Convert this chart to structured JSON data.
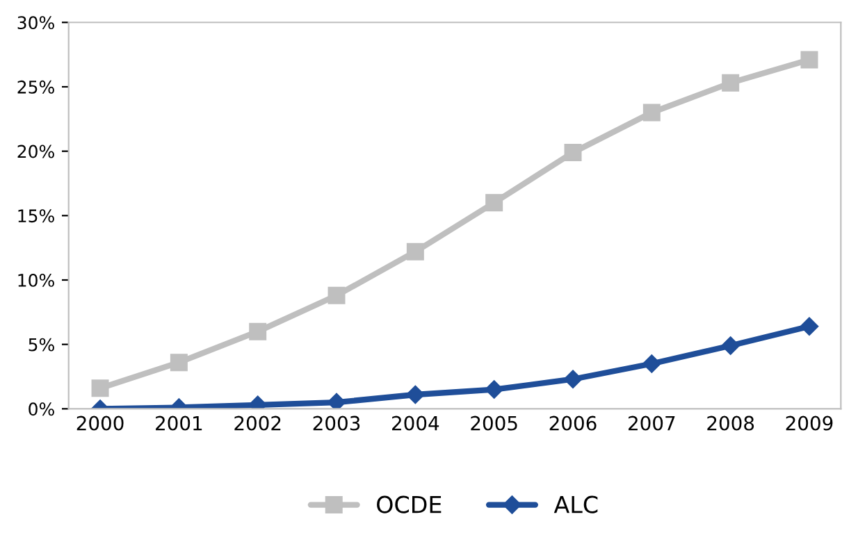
{
  "chart_data": {
    "type": "line",
    "categories": [
      "2000",
      "2001",
      "2002",
      "2003",
      "2004",
      "2005",
      "2006",
      "2007",
      "2008",
      "2009"
    ],
    "series": [
      {
        "name": "OCDE",
        "color": "#bfbfbf",
        "marker": "square",
        "values": [
          1.6,
          3.6,
          6.0,
          8.8,
          12.2,
          16.0,
          19.9,
          23.0,
          25.3,
          27.1
        ]
      },
      {
        "name": "ALC",
        "color": "#1f4e99",
        "marker": "diamond",
        "values": [
          0,
          0.1,
          0.3,
          0.5,
          1.1,
          1.5,
          2.3,
          3.5,
          4.9,
          6.4
        ]
      }
    ],
    "ylim": [
      0,
      30
    ],
    "yticks": [
      {
        "value": 0,
        "label": "0%"
      },
      {
        "value": 5,
        "label": "5%"
      },
      {
        "value": 10,
        "label": "10%"
      },
      {
        "value": 15,
        "label": "15%"
      },
      {
        "value": 20,
        "label": "20%"
      },
      {
        "value": 25,
        "label": "25%"
      },
      {
        "value": 30,
        "label": "30%"
      }
    ],
    "grid": false,
    "legend": "bottom"
  }
}
